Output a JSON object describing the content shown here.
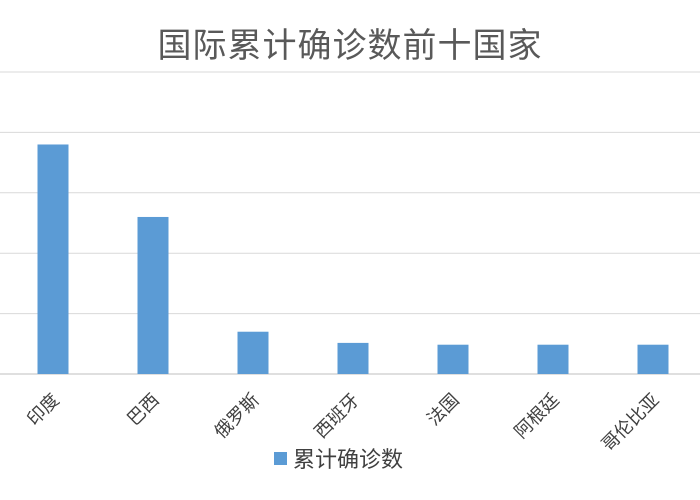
{
  "chart_data": {
    "type": "bar",
    "title": "国际累计确诊数前十国家",
    "categories": [
      "印度",
      "巴西",
      "俄罗斯",
      "西班牙",
      "法国",
      "阿根廷",
      "哥伦比亚"
    ],
    "series": [
      {
        "name": "累计确诊数",
        "values": [
          7600000,
          5200000,
          1400000,
          1030000,
          970000,
          970000,
          970000
        ]
      }
    ],
    "ylim": [
      0,
      10000000
    ],
    "gridlines": true,
    "legend_position": "bottom",
    "colors": {
      "bar": "#5b9bd5",
      "grid": "#d9d9d9",
      "axis": "#bfbfbf"
    }
  }
}
